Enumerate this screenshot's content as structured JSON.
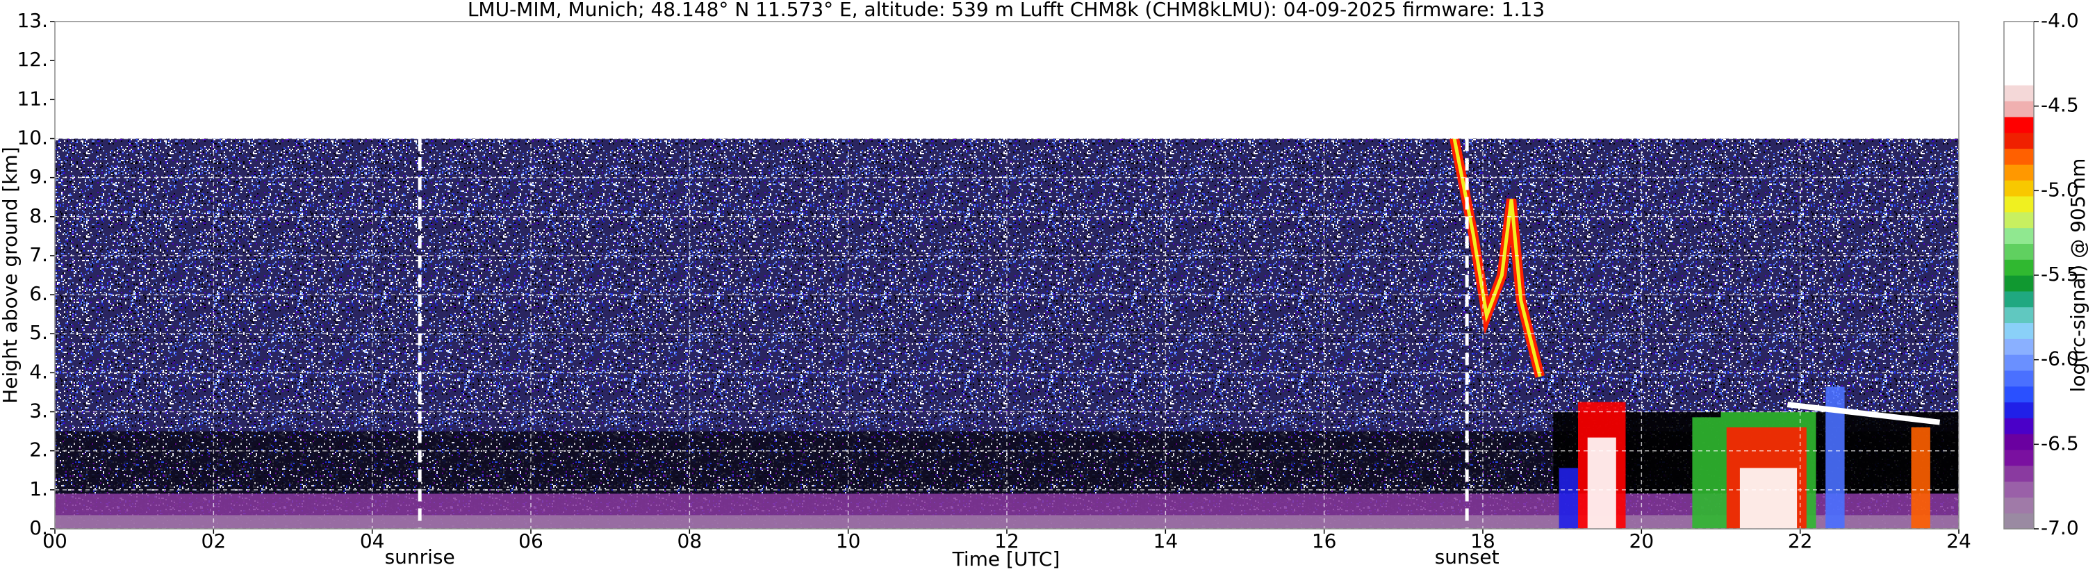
{
  "chart_data": {
    "type": "heatmap",
    "title": "LMU-MIM, Munich; 48.148° N 11.573° E, altitude: 539 m    Lufft CHM8k (CHM8kLMU): 04-09-2025    firmware: 1.13",
    "x_label": "Time [UTC]",
    "y_label": "Height above ground [km]",
    "xlim": [
      0,
      24
    ],
    "ylim": [
      0,
      13
    ],
    "xticks": [
      {
        "value": 0,
        "label": "00"
      },
      {
        "value": 2,
        "label": "02"
      },
      {
        "value": 4,
        "label": "04"
      },
      {
        "value": 6,
        "label": "06"
      },
      {
        "value": 8,
        "label": "08"
      },
      10,
      12,
      14,
      16,
      18,
      20,
      22,
      24
    ],
    "yticks": [
      {
        "value": 0,
        "label": "0."
      },
      {
        "value": 1,
        "label": "1."
      },
      {
        "value": 2,
        "label": "2."
      },
      {
        "value": 3,
        "label": "3."
      },
      {
        "value": 4,
        "label": "4."
      },
      {
        "value": 5,
        "label": "5."
      },
      {
        "value": 6,
        "label": "6."
      },
      {
        "value": 7,
        "label": "7."
      },
      {
        "value": 8,
        "label": "8."
      },
      {
        "value": 9,
        "label": "9."
      },
      {
        "value": 10,
        "label": "10."
      },
      {
        "value": 11,
        "label": "11."
      },
      {
        "value": 12,
        "label": "12."
      },
      {
        "value": 13,
        "label": "13."
      }
    ],
    "grid": true,
    "annotations": [
      {
        "text": "sunrise",
        "x": 4.6
      },
      {
        "text": "sunset",
        "x": 17.8
      }
    ],
    "colorbar": {
      "label": "log(rc-signal) @ 905 nm",
      "lim": [
        -7,
        -4
      ],
      "ticks": [
        {
          "value": -7,
          "label": "-7.0"
        },
        -6.5,
        {
          "value": -6,
          "label": "-6.0"
        },
        -5.5,
        {
          "value": -5,
          "label": "-5.0"
        },
        -4.5,
        {
          "value": -4,
          "label": "-4.0"
        }
      ],
      "colors": [
        "#9a8aa2",
        "#a07aa8",
        "#9a60a8",
        "#8a3aa0",
        "#7a10a0",
        "#6a00a0",
        "#4a00c8",
        "#2020e8",
        "#2a50ff",
        "#4a70ff",
        "#6a90ff",
        "#8ab0ff",
        "#8ad0f8",
        "#60c8c0",
        "#20a880",
        "#109830",
        "#30b830",
        "#60d060",
        "#90e890",
        "#c8f060",
        "#f0f020",
        "#f8c800",
        "#ff9800",
        "#ff6000",
        "#f02000",
        "#ff0000",
        "#f0b0b0",
        "#f4d8d8",
        "#ffffff",
        "#ffffff",
        "#ffffff",
        "#ffffff"
      ]
    }
  }
}
